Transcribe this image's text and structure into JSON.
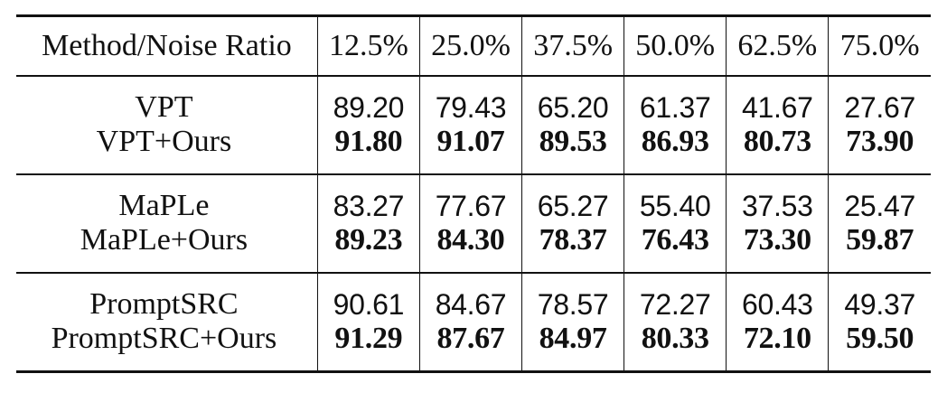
{
  "table": {
    "header": {
      "method_label": "Method/Noise Ratio",
      "ratios": [
        "12.5%",
        "25.0%",
        "37.5%",
        "50.0%",
        "62.5%",
        "75.0%"
      ]
    },
    "groups": [
      {
        "base": {
          "name": "VPT",
          "values": [
            "89.20",
            "79.43",
            "65.20",
            "61.37",
            "41.67",
            "27.67"
          ]
        },
        "ours": {
          "name": "VPT+Ours",
          "values": [
            "91.80",
            "91.07",
            "89.53",
            "86.93",
            "80.73",
            "73.90"
          ]
        }
      },
      {
        "base": {
          "name": "MaPLe",
          "values": [
            "83.27",
            "77.67",
            "65.27",
            "55.40",
            "37.53",
            "25.47"
          ]
        },
        "ours": {
          "name": "MaPLe+Ours",
          "values": [
            "89.23",
            "84.30",
            "78.37",
            "76.43",
            "73.30",
            "59.87"
          ]
        }
      },
      {
        "base": {
          "name": "PromptSRC",
          "values": [
            "90.61",
            "84.67",
            "78.57",
            "72.27",
            "60.43",
            "49.37"
          ]
        },
        "ours": {
          "name": "PromptSRC+Ours",
          "values": [
            "91.29",
            "87.67",
            "84.97",
            "80.33",
            "72.10",
            "59.50"
          ]
        }
      }
    ]
  }
}
